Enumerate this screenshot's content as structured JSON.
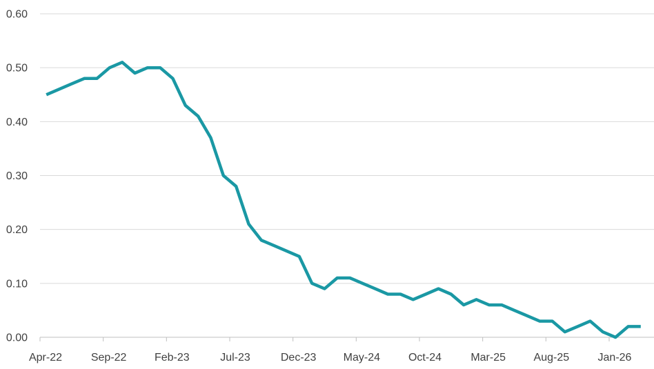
{
  "chart_data": {
    "type": "line",
    "title": "",
    "xlabel": "",
    "ylabel": "",
    "ylim": [
      0,
      0.6
    ],
    "grid": true,
    "legend": "none",
    "colors": {
      "series": "#1a98a4",
      "grid": "#d9d9d9",
      "axis": "#bfbfbf",
      "text": "#404040"
    },
    "y_ticks": [
      "0.00",
      "0.10",
      "0.20",
      "0.30",
      "0.40",
      "0.50",
      "0.60"
    ],
    "x_ticks": [
      "Apr-22",
      "Sep-22",
      "Feb-23",
      "Jul-23",
      "Dec-23",
      "May-24",
      "Oct-24",
      "Mar-25",
      "Aug-25",
      "Jan-26"
    ],
    "x_start": "Apr-22",
    "x_end": "Mar-26",
    "series": [
      {
        "x": [
          "Apr-22",
          "May-22",
          "Jun-22",
          "Jul-22",
          "Aug-22",
          "Sep-22",
          "Oct-22",
          "Nov-22",
          "Dec-22",
          "Jan-23",
          "Feb-23",
          "Mar-23",
          "Apr-23",
          "May-23",
          "Jun-23",
          "Jul-23",
          "Aug-23",
          "Sep-23",
          "Oct-23",
          "Nov-23",
          "Dec-23",
          "Jan-24",
          "Feb-24",
          "Mar-24",
          "Apr-24",
          "May-24",
          "Jun-24",
          "Jul-24",
          "Aug-24",
          "Sep-24",
          "Oct-24",
          "Nov-24",
          "Dec-24",
          "Jan-25",
          "Feb-25",
          "Mar-25",
          "Apr-25",
          "May-25",
          "Jun-25",
          "Jul-25",
          "Aug-25",
          "Sep-25",
          "Oct-25",
          "Nov-25",
          "Dec-25",
          "Jan-26",
          "Feb-26",
          "Mar-26"
        ],
        "values": [
          0.45,
          0.46,
          0.47,
          0.48,
          0.48,
          0.5,
          0.51,
          0.49,
          0.5,
          0.5,
          0.48,
          0.43,
          0.41,
          0.37,
          0.3,
          0.28,
          0.21,
          0.18,
          0.17,
          0.16,
          0.15,
          0.1,
          0.09,
          0.11,
          0.11,
          0.1,
          0.09,
          0.08,
          0.08,
          0.07,
          0.08,
          0.09,
          0.08,
          0.06,
          0.07,
          0.06,
          0.06,
          0.05,
          0.04,
          0.03,
          0.03,
          0.01,
          0.02,
          0.03,
          0.01,
          0.0,
          0.02,
          0.02
        ]
      }
    ]
  }
}
